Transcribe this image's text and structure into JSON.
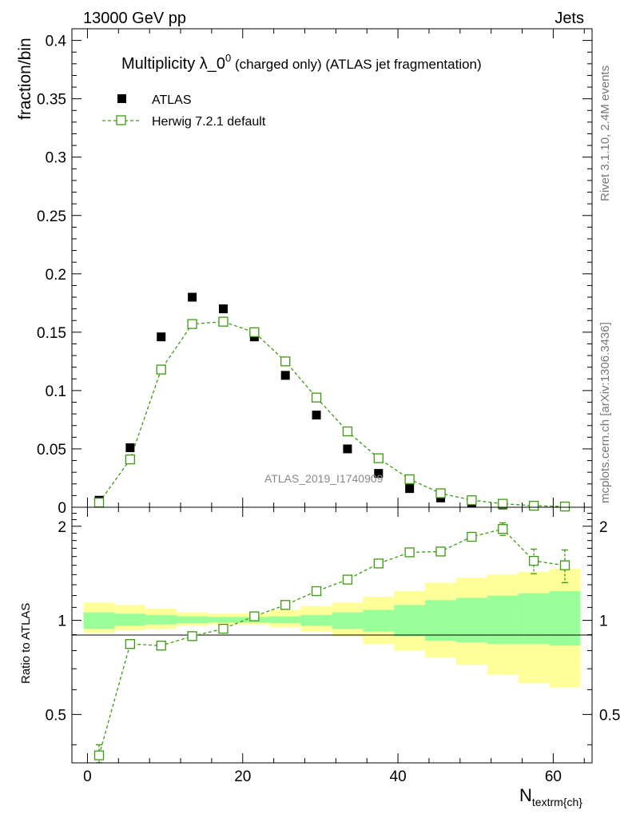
{
  "header": {
    "energy_label": "13000 GeV pp",
    "process_label": "Jets"
  },
  "side_labels": {
    "rivet": "Rivet 3.1.10,  2.4M events",
    "mcplots": "mcplots.cern.ch [arXiv:1306.3436]"
  },
  "colors": {
    "data": "#000000",
    "mc": "#3a9a0e",
    "band_inner": "#99ff99",
    "band_outer": "#ffff99"
  },
  "chart_data": [
    {
      "type": "scatter",
      "title_main": "Multiplicity λ_0",
      "title_sup": "0",
      "title_rest": " (charged only) (ATLAS jet fragmentation)",
      "ylabel": "fraction/bin",
      "watermark": "ATLAS_2019_I1740909",
      "xlim": [
        -2,
        65
      ],
      "ylim": [
        0,
        0.41
      ],
      "yticks": [
        0,
        0.05,
        0.1,
        0.15,
        0.2,
        0.25,
        0.3,
        0.35,
        0.4
      ],
      "ytick_labels": [
        "0",
        "0.05",
        "0.1",
        "0.15",
        "0.2",
        "0.25",
        "0.3",
        "0.35",
        "0.4"
      ],
      "legend": [
        "ATLAS",
        "Herwig 7.2.1 default"
      ],
      "series": [
        {
          "name": "ATLAS",
          "x": [
            1.5,
            5.5,
            9.5,
            13.5,
            17.5,
            21.5,
            25.5,
            29.5,
            33.5,
            37.5,
            41.5,
            45.5,
            49.5,
            53.5,
            57.5,
            61.5
          ],
          "y": [
            0.006,
            0.051,
            0.146,
            0.18,
            0.17,
            0.146,
            0.113,
            0.079,
            0.05,
            0.029,
            0.016,
            0.008,
            0.004,
            0.002,
            0.001,
            0.0004
          ]
        },
        {
          "name": "Herwig 7.2.1 default",
          "x": [
            1.5,
            5.5,
            9.5,
            13.5,
            17.5,
            21.5,
            25.5,
            29.5,
            33.5,
            37.5,
            41.5,
            45.5,
            49.5,
            53.5,
            57.5,
            61.5
          ],
          "y": [
            0.004,
            0.041,
            0.118,
            0.157,
            0.159,
            0.15,
            0.125,
            0.094,
            0.065,
            0.042,
            0.024,
            0.012,
            0.006,
            0.003,
            0.0013,
            0.0006
          ]
        }
      ]
    },
    {
      "type": "line",
      "ylabel": "Ratio to ATLAS",
      "xlabel_main": "N",
      "xlabel_sub": "textrm{ch}",
      "xlim": [
        -2,
        65
      ],
      "ylim": [
        0.35,
        2.3
      ],
      "xticks": [
        0,
        20,
        40,
        60
      ],
      "xtick_labels": [
        "0",
        "20",
        "40",
        "60"
      ],
      "yticks": [
        0.5,
        1,
        2
      ],
      "ytick_labels": [
        "0.5",
        "1",
        "2"
      ],
      "bins": [
        [
          -0.5,
          3.5
        ],
        [
          3.5,
          7.5
        ],
        [
          7.5,
          11.5
        ],
        [
          11.5,
          15.5
        ],
        [
          15.5,
          19.5
        ],
        [
          19.5,
          23.5
        ],
        [
          23.5,
          27.5
        ],
        [
          27.5,
          31.5
        ],
        [
          31.5,
          35.5
        ],
        [
          35.5,
          39.5
        ],
        [
          39.5,
          43.5
        ],
        [
          43.5,
          47.5
        ],
        [
          47.5,
          51.5
        ],
        [
          51.5,
          55.5
        ],
        [
          55.5,
          59.5
        ],
        [
          59.5,
          63.5
        ]
      ],
      "band_inner": [
        [
          0.94,
          1.06
        ],
        [
          0.96,
          1.05
        ],
        [
          0.97,
          1.04
        ],
        [
          0.98,
          1.03
        ],
        [
          0.985,
          1.025
        ],
        [
          0.985,
          1.025
        ],
        [
          0.98,
          1.03
        ],
        [
          0.96,
          1.04
        ],
        [
          0.94,
          1.06
        ],
        [
          0.92,
          1.08
        ],
        [
          0.89,
          1.12
        ],
        [
          0.86,
          1.16
        ],
        [
          0.85,
          1.18
        ],
        [
          0.84,
          1.2
        ],
        [
          0.84,
          1.22
        ],
        [
          0.83,
          1.24
        ]
      ],
      "band_outer": [
        [
          0.91,
          1.14
        ],
        [
          0.93,
          1.12
        ],
        [
          0.94,
          1.09
        ],
        [
          0.96,
          1.06
        ],
        [
          0.97,
          1.05
        ],
        [
          0.97,
          1.05
        ],
        [
          0.95,
          1.08
        ],
        [
          0.92,
          1.11
        ],
        [
          0.89,
          1.14
        ],
        [
          0.84,
          1.19
        ],
        [
          0.8,
          1.24
        ],
        [
          0.76,
          1.32
        ],
        [
          0.72,
          1.37
        ],
        [
          0.67,
          1.4
        ],
        [
          0.63,
          1.43
        ],
        [
          0.61,
          1.46
        ]
      ],
      "series": [
        {
          "name": "Herwig 7.2.1 default",
          "x": [
            1.5,
            5.5,
            9.5,
            13.5,
            17.5,
            21.5,
            25.5,
            29.5,
            33.5,
            37.5,
            41.5,
            45.5,
            49.5,
            53.5,
            57.5,
            61.5
          ],
          "y": [
            0.37,
            0.84,
            0.83,
            0.89,
            0.94,
            1.03,
            1.12,
            1.24,
            1.35,
            1.52,
            1.65,
            1.66,
            1.85,
            1.96,
            1.55,
            1.5
          ],
          "err": [
            0.03,
            0.01,
            0.01,
            0.01,
            0.01,
            0.01,
            0.01,
            0.01,
            0.02,
            0.02,
            0.03,
            0.04,
            0.06,
            0.09,
            0.14,
            0.18
          ]
        }
      ]
    }
  ]
}
